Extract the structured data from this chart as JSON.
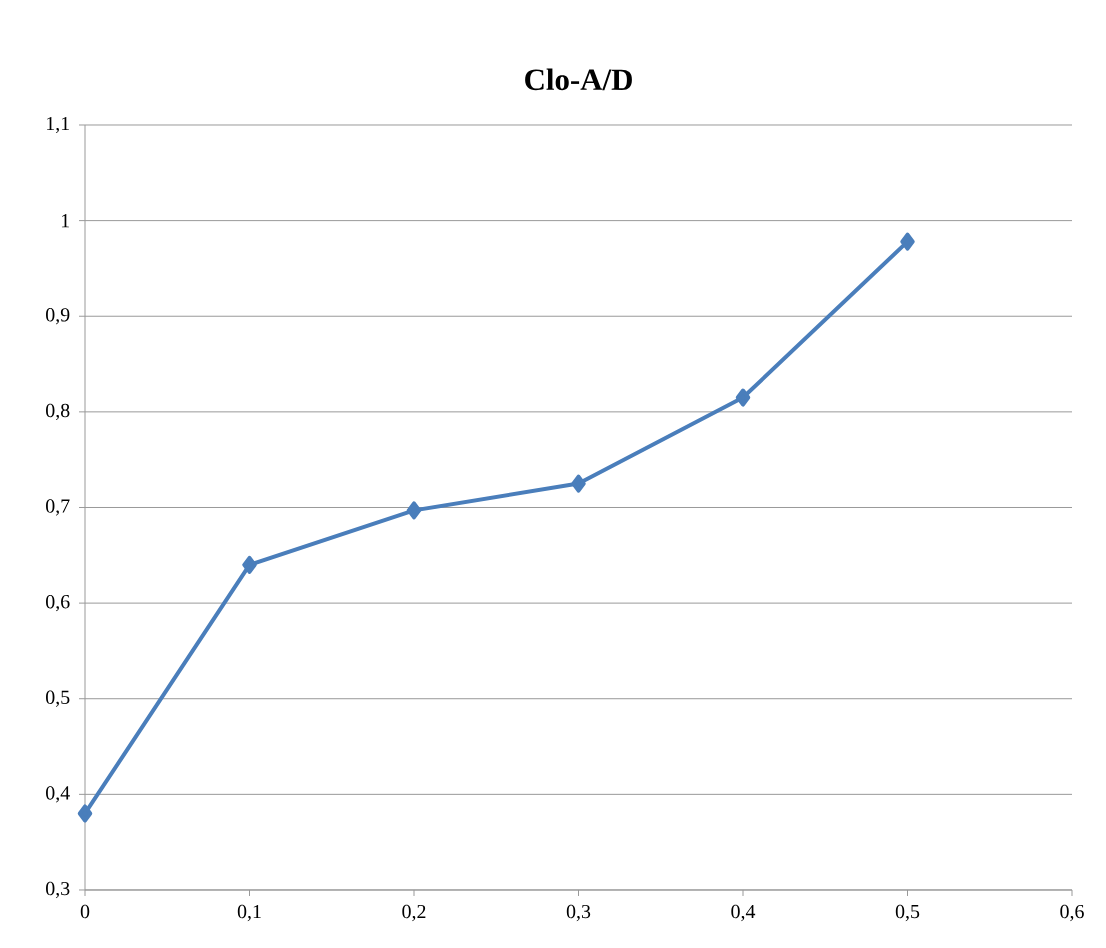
{
  "chart_data": {
    "type": "line",
    "title": "Clo-A/D",
    "x": [
      0,
      0.1,
      0.2,
      0.3,
      0.4,
      0.5
    ],
    "series": [
      {
        "color": "#4a7ebb",
        "values": [
          0.38,
          0.64,
          0.697,
          0.725,
          0.815,
          0.978
        ]
      }
    ],
    "xlim": [
      0,
      0.6
    ],
    "ylim": [
      0.3,
      1.1
    ],
    "xticks": [
      {
        "value": 0,
        "label": "0"
      },
      {
        "value": 0.1,
        "label": "0,1"
      },
      {
        "value": 0.2,
        "label": "0,2"
      },
      {
        "value": 0.3,
        "label": "0,3"
      },
      {
        "value": 0.4,
        "label": "0,4"
      },
      {
        "value": 0.5,
        "label": "0,5"
      },
      {
        "value": 0.6,
        "label": "0,6"
      }
    ],
    "yticks": [
      {
        "value": 0.3,
        "label": "0,3"
      },
      {
        "value": 0.4,
        "label": "0,4"
      },
      {
        "value": 0.5,
        "label": "0,5"
      },
      {
        "value": 0.6,
        "label": "0,6"
      },
      {
        "value": 0.7,
        "label": "0,7"
      },
      {
        "value": 0.8,
        "label": "0,8"
      },
      {
        "value": 0.9,
        "label": "0,9"
      },
      {
        "value": 1,
        "label": "1"
      },
      {
        "value": 1.1,
        "label": "1,1"
      }
    ],
    "grid": "y",
    "marker": "diamond",
    "line_style": "solid"
  }
}
